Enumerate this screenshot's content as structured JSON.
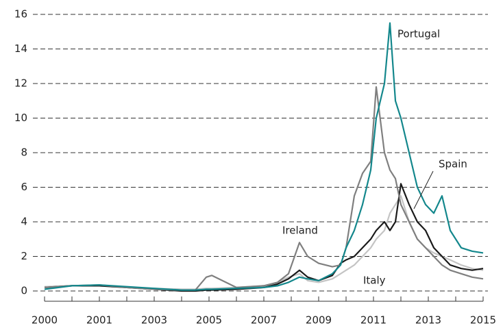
{
  "chart_data": {
    "type": "line",
    "x": [
      0,
      1,
      2,
      3,
      4,
      5,
      5.5,
      5.9,
      6.1,
      7,
      8,
      8.5,
      8.9,
      9.3,
      9.6,
      10,
      10.5,
      10.8,
      11,
      11.3,
      11.6,
      11.9,
      12.1,
      12.4,
      12.6,
      12.8,
      13,
      13.3,
      13.6,
      13.9,
      14.2,
      14.5,
      14.8,
      15.2,
      15.6,
      16
    ],
    "xlim": [
      0,
      16
    ],
    "xticks": [
      {
        "value": 0,
        "label": "2000"
      },
      {
        "value": 2,
        "label": "2001"
      },
      {
        "value": 4,
        "label": "2003"
      },
      {
        "value": 6,
        "label": "2005"
      },
      {
        "value": 8,
        "label": "2007"
      },
      {
        "value": 10,
        "label": "2009"
      },
      {
        "value": 12,
        "label": "2011"
      },
      {
        "value": 14,
        "label": "2013"
      },
      {
        "value": 16,
        "label": "2015"
      }
    ],
    "xminorticks": [
      1,
      3,
      5,
      7,
      9,
      11,
      13,
      15
    ],
    "ylim": [
      0,
      16
    ],
    "yticks": [
      0,
      2,
      4,
      6,
      8,
      10,
      12,
      14,
      16
    ],
    "grid": true,
    "series": [
      {
        "name": "Italy",
        "color": "#c4c4c4",
        "values": [
          0.25,
          0.3,
          0.3,
          0.2,
          0.15,
          0.1,
          0.1,
          0.15,
          0.15,
          0.2,
          0.3,
          0.5,
          0.8,
          1,
          0.6,
          0.5,
          0.7,
          1,
          1.2,
          1.5,
          2,
          2.5,
          3,
          3.5,
          4.5,
          5,
          5.5,
          4,
          3,
          2.5,
          2.2,
          2,
          1.8,
          1.5,
          1.3,
          1.2
        ]
      },
      {
        "name": "Spain",
        "color": "#1a1a1a",
        "values": [
          0.2,
          0.3,
          0.3,
          0.2,
          0.1,
          0,
          0,
          0.05,
          0.05,
          0.1,
          0.2,
          0.4,
          0.7,
          1.2,
          0.8,
          0.6,
          0.9,
          1.6,
          1.8,
          2,
          2.5,
          3,
          3.5,
          4,
          3.5,
          4,
          6.2,
          5,
          4,
          3.5,
          2.5,
          2,
          1.5,
          1.3,
          1.2,
          1.3
        ]
      },
      {
        "name": "Ireland",
        "color": "#7f7f7f",
        "values": [
          0.2,
          0.3,
          0.35,
          0.2,
          0.1,
          0.05,
          0.05,
          0.8,
          0.9,
          0.2,
          0.3,
          0.5,
          1,
          2.8,
          2,
          1.6,
          1.4,
          1.5,
          2.5,
          5.5,
          6.8,
          7.5,
          11.8,
          8,
          7,
          6.5,
          5,
          4,
          3,
          2.5,
          2,
          1.5,
          1.2,
          1,
          0.8,
          0.7
        ]
      },
      {
        "name": "Portugal",
        "color": "#13878c",
        "values": [
          0.1,
          0.3,
          0.35,
          0.25,
          0.15,
          0.05,
          0.05,
          0.1,
          0.1,
          0.15,
          0.2,
          0.3,
          0.5,
          0.8,
          0.7,
          0.6,
          1,
          1.5,
          2.5,
          3.5,
          5,
          7,
          10,
          12,
          15.5,
          11,
          10,
          8,
          6,
          5,
          4.5,
          5.5,
          3.5,
          2.5,
          2.3,
          2.2
        ]
      }
    ]
  }
}
